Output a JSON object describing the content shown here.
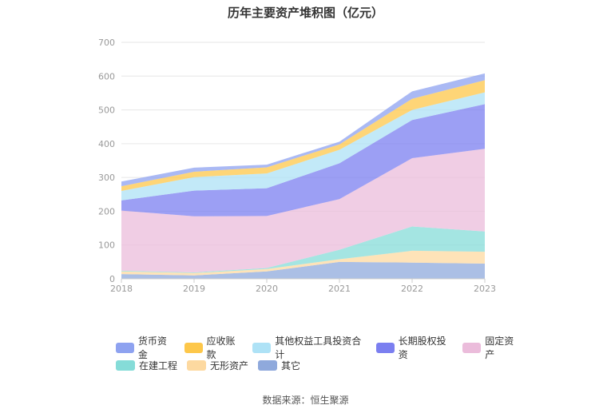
{
  "chart_data": {
    "type": "area",
    "stacked": true,
    "title": "历年主要资产堆积图（亿元）",
    "x": [
      "2018",
      "2019",
      "2020",
      "2021",
      "2022",
      "2023"
    ],
    "ylim": [
      0,
      700
    ],
    "yticks": [
      0,
      100,
      200,
      300,
      400,
      500,
      600,
      700
    ],
    "grid": true,
    "legend_position": "bottom",
    "series": [
      {
        "name": "其它",
        "color": "#8fa9dc",
        "values": [
          14,
          10,
          22,
          50,
          48,
          45
        ]
      },
      {
        "name": "无形资产",
        "color": "#fdd9a0",
        "values": [
          8,
          7,
          7,
          8,
          35,
          35
        ]
      },
      {
        "name": "在建工程",
        "color": "#85dcd8",
        "values": [
          2,
          2,
          3,
          28,
          72,
          60
        ]
      },
      {
        "name": "固定资产",
        "color": "#ebbcdb",
        "values": [
          178,
          166,
          154,
          150,
          202,
          245
        ]
      },
      {
        "name": "长期股权投资",
        "color": "#7b7ff0",
        "values": [
          30,
          76,
          82,
          106,
          113,
          132
        ]
      },
      {
        "name": "其他权益工具投资合计",
        "color": "#aee2f6",
        "values": [
          28,
          40,
          44,
          40,
          30,
          35
        ]
      },
      {
        "name": "应收账款",
        "color": "#fdc74a",
        "values": [
          14,
          16,
          18,
          16,
          33,
          36
        ]
      },
      {
        "name": "货币资金",
        "color": "#8ea2f0",
        "values": [
          14,
          12,
          8,
          8,
          22,
          20
        ]
      }
    ]
  },
  "legend_rows": [
    [
      "货币资金",
      "应收账款",
      "其他权益工具投资合计",
      "长期股权投资",
      "固定资产"
    ],
    [
      "在建工程",
      "无形资产",
      "其它"
    ]
  ],
  "source": "数据来源：恒生聚源"
}
